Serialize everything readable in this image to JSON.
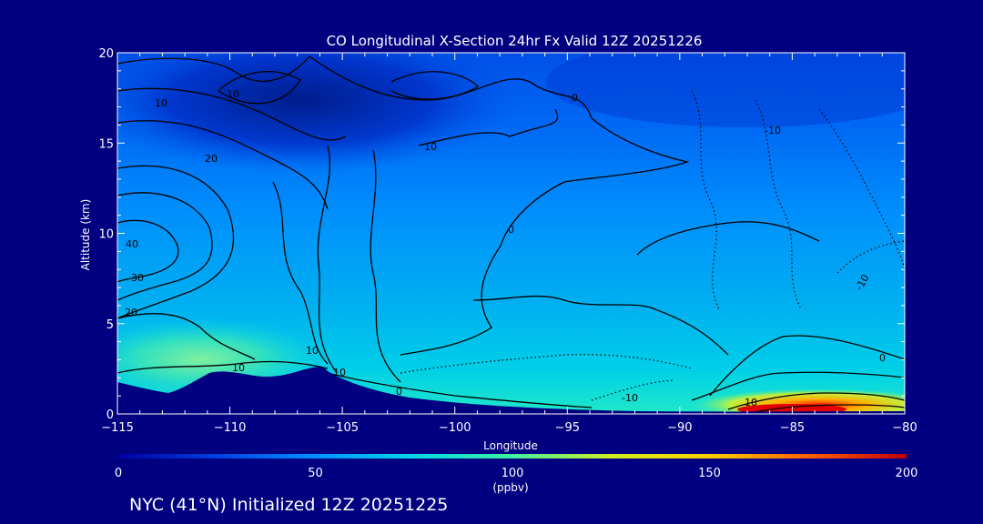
{
  "chart_data": {
    "type": "heatmap",
    "title": "CO Longitudinal X-Section 24hr  Fx Valid 12Z 20251226",
    "xlabel": "Longitude",
    "ylabel": "Altitude (km)",
    "xlim": [
      -115,
      -80
    ],
    "ylim": [
      0,
      20
    ],
    "x_ticks": [
      "-115",
      "-110",
      "-105",
      "-100",
      "-95",
      "-90",
      "-85",
      "-80"
    ],
    "y_ticks": [
      "0",
      "5",
      "10",
      "15",
      "20"
    ],
    "colorbar": {
      "min": 0,
      "max": 200,
      "ticks": [
        "0",
        "50",
        "100",
        "150",
        "200"
      ],
      "unit": "(ppbv)",
      "colors": [
        "#0000a0",
        "#0040e0",
        "#0090ff",
        "#00d8e8",
        "#40f0a0",
        "#d0f020",
        "#ffd000",
        "#ff6000",
        "#c00000"
      ]
    },
    "contour_labels": [
      "10",
      "10",
      "20",
      "30",
      "40",
      "20",
      "10",
      "10",
      "0",
      "10",
      "0",
      "0",
      "-10",
      "-10",
      "0",
      "10",
      "-10",
      "10"
    ],
    "caption": "NYC (41°N) Initialized 12Z 20251225"
  }
}
